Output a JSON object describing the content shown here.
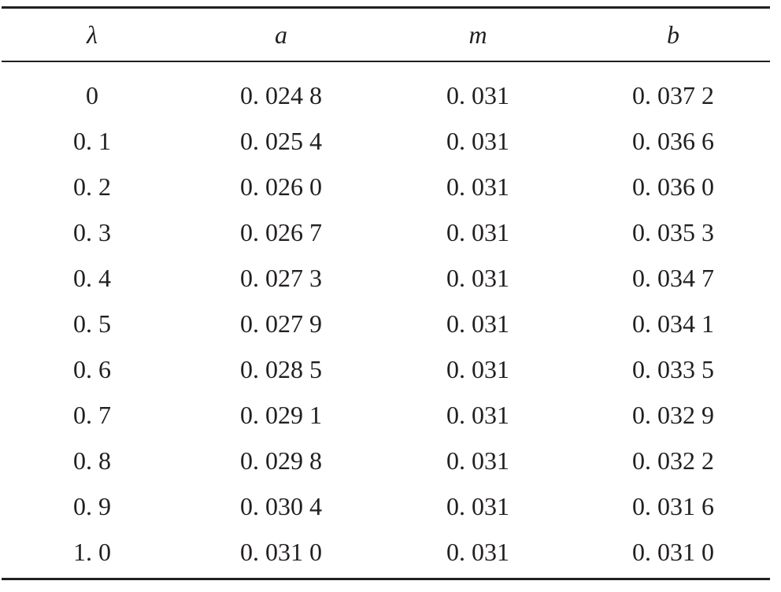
{
  "table": {
    "columns": [
      "λ",
      "a",
      "m",
      "b"
    ],
    "rows": [
      [
        "0",
        "0. 024 8",
        "0. 031",
        "0. 037 2"
      ],
      [
        "0. 1",
        "0. 025 4",
        "0. 031",
        "0. 036 6"
      ],
      [
        "0. 2",
        "0. 026 0",
        "0. 031",
        "0. 036 0"
      ],
      [
        "0. 3",
        "0. 026 7",
        "0. 031",
        "0. 035 3"
      ],
      [
        "0. 4",
        "0. 027 3",
        "0. 031",
        "0. 034 7"
      ],
      [
        "0. 5",
        "0. 027 9",
        "0. 031",
        "0. 034 1"
      ],
      [
        "0. 6",
        "0. 028 5",
        "0. 031",
        "0. 033 5"
      ],
      [
        "0. 7",
        "0. 029 1",
        "0. 031",
        "0. 032 9"
      ],
      [
        "0. 8",
        "0. 029 8",
        "0. 031",
        "0. 032 2"
      ],
      [
        "0. 9",
        "0. 030 4",
        "0. 031",
        "0. 031 6"
      ],
      [
        "1. 0",
        "0. 031 0",
        "0. 031",
        "0. 031 0"
      ]
    ]
  }
}
